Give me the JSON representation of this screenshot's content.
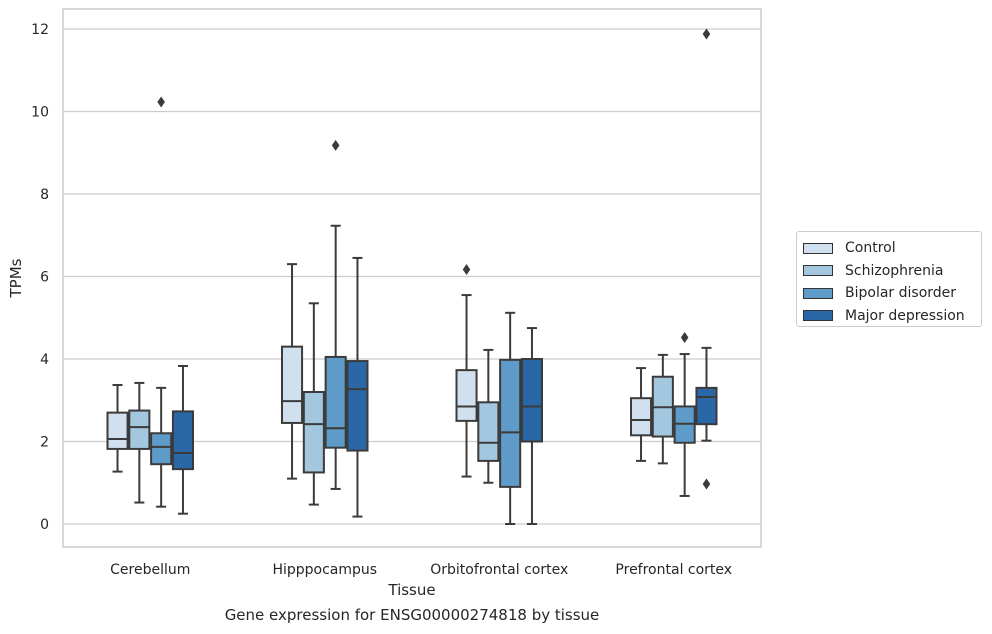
{
  "chart_data": {
    "type": "boxplot",
    "title": "",
    "caption": "Gene expression for ENSG00000274818 by tissue",
    "xlabel": "Tissue",
    "ylabel": "TPMs",
    "ylim": [
      -0.6,
      12.5
    ],
    "yticks": [
      0,
      2,
      4,
      6,
      8,
      10,
      12
    ],
    "grid": "horizontal",
    "legend_position": "right",
    "categories": [
      "Cerebellum",
      "Hipppocampus",
      "Orbitofrontal cortex",
      "Prefrontal cortex"
    ],
    "series": [
      {
        "name": "Control",
        "color": "#d1e0ef",
        "boxes": [
          {
            "whislo": 1.27,
            "q1": 1.82,
            "med": 2.06,
            "q3": 2.7,
            "whishi": 3.37,
            "fliers": []
          },
          {
            "whislo": 1.1,
            "q1": 2.45,
            "med": 2.98,
            "q3": 4.3,
            "whishi": 6.3,
            "fliers": []
          },
          {
            "whislo": 1.15,
            "q1": 2.5,
            "med": 2.85,
            "q3": 3.73,
            "whishi": 5.55,
            "fliers": [
              6.17
            ]
          },
          {
            "whislo": 1.53,
            "q1": 2.15,
            "med": 2.52,
            "q3": 3.05,
            "whishi": 3.78,
            "fliers": []
          }
        ]
      },
      {
        "name": "Schizophrenia",
        "color": "#a3c7de",
        "boxes": [
          {
            "whislo": 0.52,
            "q1": 1.82,
            "med": 2.35,
            "q3": 2.75,
            "whishi": 3.42,
            "fliers": []
          },
          {
            "whislo": 0.47,
            "q1": 1.25,
            "med": 2.42,
            "q3": 3.2,
            "whishi": 5.35,
            "fliers": []
          },
          {
            "whislo": 1.0,
            "q1": 1.53,
            "med": 1.97,
            "q3": 2.95,
            "whishi": 4.22,
            "fliers": []
          },
          {
            "whislo": 1.47,
            "q1": 2.12,
            "med": 2.83,
            "q3": 3.57,
            "whishi": 4.1,
            "fliers": []
          }
        ]
      },
      {
        "name": "Bipolar disorder",
        "color": "#5e9bc8",
        "boxes": [
          {
            "whislo": 0.42,
            "q1": 1.45,
            "med": 1.87,
            "q3": 2.2,
            "whishi": 3.3,
            "fliers": [
              10.23
            ]
          },
          {
            "whislo": 0.85,
            "q1": 1.85,
            "med": 2.32,
            "q3": 4.05,
            "whishi": 7.23,
            "fliers": [
              9.18
            ]
          },
          {
            "whislo": 0.0,
            "q1": 0.9,
            "med": 2.22,
            "q3": 3.98,
            "whishi": 5.12,
            "fliers": []
          },
          {
            "whislo": 0.68,
            "q1": 1.97,
            "med": 2.43,
            "q3": 2.85,
            "whishi": 4.12,
            "fliers": [
              4.52
            ]
          }
        ]
      },
      {
        "name": "Major depression",
        "color": "#2a67a7",
        "boxes": [
          {
            "whislo": 0.25,
            "q1": 1.33,
            "med": 1.72,
            "q3": 2.73,
            "whishi": 3.83,
            "fliers": []
          },
          {
            "whislo": 0.18,
            "q1": 1.78,
            "med": 3.27,
            "q3": 3.95,
            "whishi": 6.45,
            "fliers": []
          },
          {
            "whislo": 0.0,
            "q1": 2.0,
            "med": 2.85,
            "q3": 4.0,
            "whishi": 4.75,
            "fliers": []
          },
          {
            "whislo": 2.02,
            "q1": 2.42,
            "med": 3.08,
            "q3": 3.3,
            "whishi": 4.27,
            "fliers": [
              0.97,
              11.88
            ]
          }
        ]
      }
    ]
  }
}
